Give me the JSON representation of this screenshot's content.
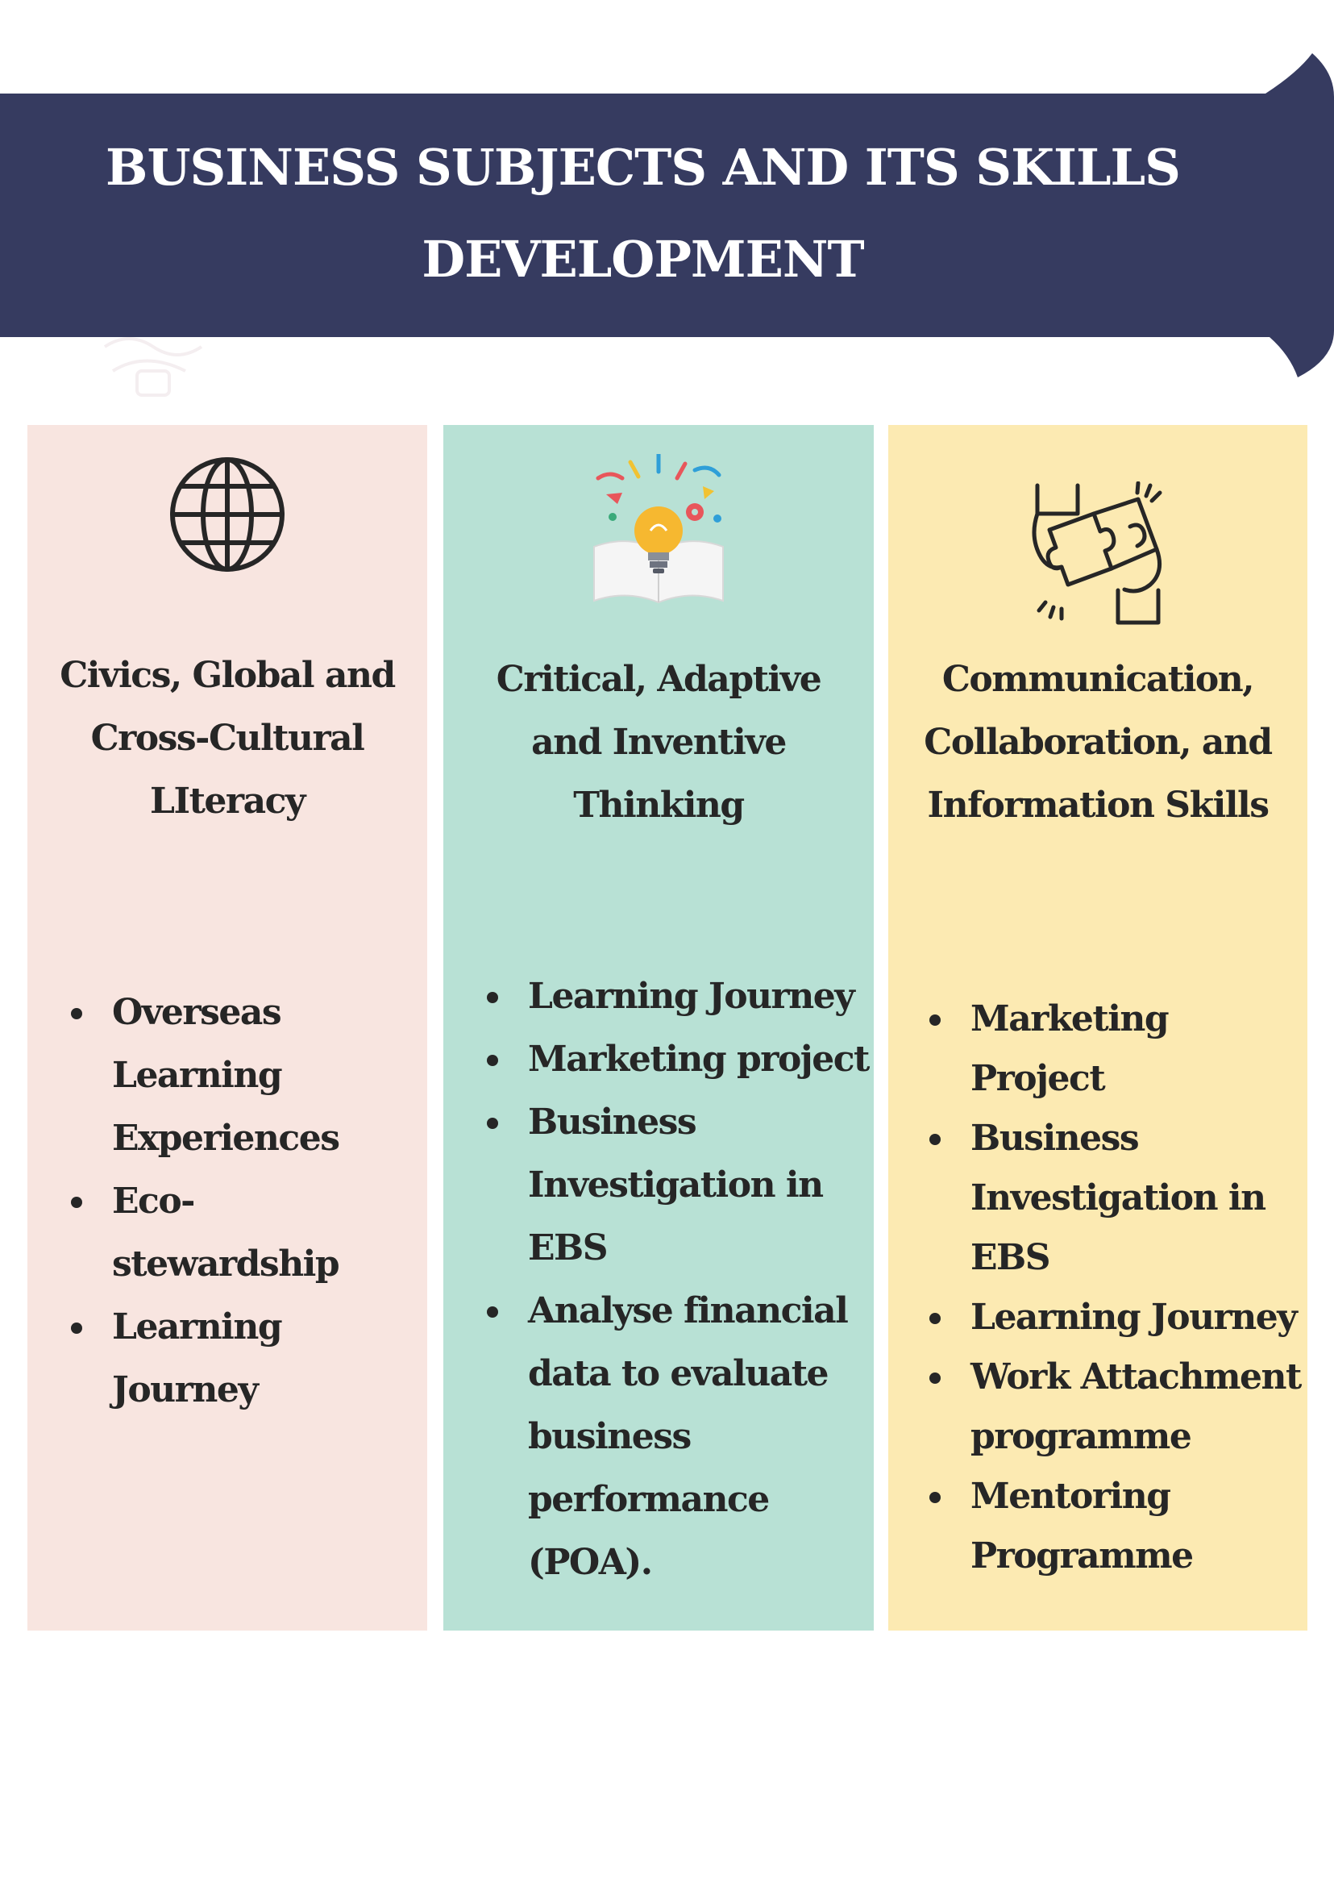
{
  "header": {
    "title_line1": "BUSINESS SUBJECTS AND ITS SKILLS",
    "title_line2": "DEVELOPMENT",
    "background_color": "#363b60",
    "text_color": "#ffffff"
  },
  "columns": [
    {
      "icon": "globe-icon",
      "background_color": "#f8e5e0",
      "heading_lines": [
        "Civics, Global and",
        "Cross-Cultural",
        "LIteracy"
      ],
      "bullets": [
        "Overseas Learning Experiences",
        "Eco-stewardship",
        "Learning Journey"
      ],
      "bullet_lines": [
        [
          "Overseas",
          "Learning",
          "Experiences"
        ],
        [
          "Eco-",
          "stewardship"
        ],
        [
          "Learning",
          "Journey"
        ]
      ]
    },
    {
      "icon": "lightbulb-book-icon",
      "background_color": "#b8e1d5",
      "heading_lines": [
        "Critical, Adaptive",
        "and Inventive",
        "Thinking"
      ],
      "bullets": [
        "Learning Journey",
        "Marketing project",
        "Business Investigation in EBS",
        "Analyse financial data to evaluate business performance (POA)."
      ],
      "bullet_lines": [
        [
          "Learning Journey"
        ],
        [
          "Marketing project"
        ],
        [
          "Business",
          "Investigation in",
          "EBS"
        ],
        [
          "Analyse financial",
          "data to evaluate",
          "business",
          "performance",
          "(POA)."
        ]
      ]
    },
    {
      "icon": "puzzle-hands-icon",
      "background_color": "#fceab2",
      "heading_lines": [
        "Communication,",
        "Collaboration, and",
        "Information Skills"
      ],
      "bullets": [
        "Marketing Project",
        "Business Investigation in EBS",
        "Learning Journey",
        "Work Attachment programme",
        "Mentoring Programme"
      ],
      "bullet_lines": [
        [
          "Marketing Project"
        ],
        [
          "Business",
          "Investigation in",
          "EBS"
        ],
        [
          "Learning Journey"
        ],
        [
          "Work Attachment",
          "programme"
        ],
        [
          "Mentoring",
          "Programme"
        ]
      ]
    }
  ]
}
